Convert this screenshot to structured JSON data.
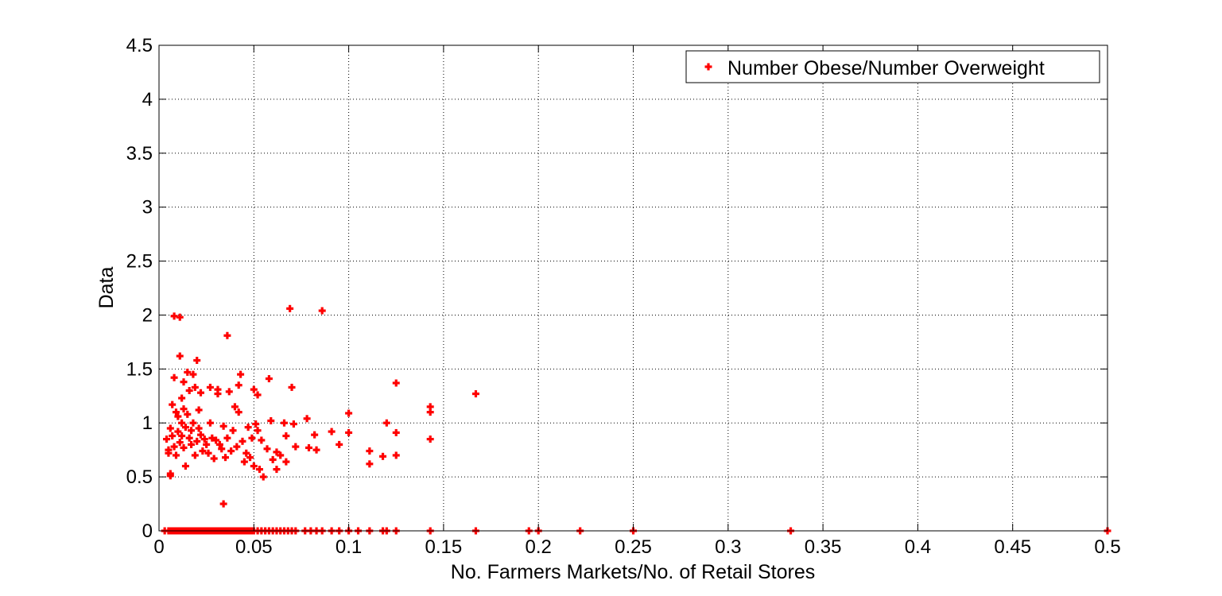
{
  "chart_data": {
    "type": "scatter",
    "xlabel": "No. Farmers Markets/No. of Retail Stores",
    "ylabel": "Data",
    "xlim": [
      0,
      0.5
    ],
    "ylim": [
      0,
      4.5
    ],
    "x_ticks": [
      0,
      0.05,
      0.1,
      0.15,
      0.2,
      0.25,
      0.3,
      0.35,
      0.4,
      0.45,
      0.5
    ],
    "x_tick_labels": [
      "0",
      "0.05",
      "0.1",
      "0.15",
      "0.2",
      "0.25",
      "0.3",
      "0.35",
      "0.4",
      "0.45",
      "0.5"
    ],
    "y_ticks": [
      0,
      0.5,
      1,
      1.5,
      2,
      2.5,
      3,
      3.5,
      4,
      4.5
    ],
    "y_tick_labels": [
      "0",
      "0.5",
      "1",
      "1.5",
      "2",
      "2.5",
      "3",
      "3.5",
      "4",
      "4.5"
    ],
    "grid": true,
    "legend_position": "top-right",
    "colors": {
      "series": "#ff0000",
      "axes": "#000000",
      "background": "#ffffff"
    },
    "series": [
      {
        "name": "Number Obese/Number Overweight",
        "marker": "plus",
        "points": [
          [
            0.003,
            0
          ],
          [
            0.005,
            0
          ],
          [
            0.006,
            0
          ],
          [
            0.007,
            0
          ],
          [
            0.008,
            0
          ],
          [
            0.009,
            0
          ],
          [
            0.01,
            0
          ],
          [
            0.011,
            0
          ],
          [
            0.012,
            0
          ],
          [
            0.013,
            0
          ],
          [
            0.014,
            0
          ],
          [
            0.015,
            0
          ],
          [
            0.016,
            0
          ],
          [
            0.017,
            0
          ],
          [
            0.018,
            0
          ],
          [
            0.019,
            0
          ],
          [
            0.02,
            0
          ],
          [
            0.021,
            0
          ],
          [
            0.022,
            0
          ],
          [
            0.023,
            0
          ],
          [
            0.024,
            0
          ],
          [
            0.025,
            0
          ],
          [
            0.026,
            0
          ],
          [
            0.027,
            0
          ],
          [
            0.028,
            0
          ],
          [
            0.029,
            0
          ],
          [
            0.03,
            0
          ],
          [
            0.031,
            0
          ],
          [
            0.032,
            0
          ],
          [
            0.033,
            0
          ],
          [
            0.034,
            0
          ],
          [
            0.035,
            0
          ],
          [
            0.036,
            0
          ],
          [
            0.037,
            0
          ],
          [
            0.038,
            0
          ],
          [
            0.039,
            0
          ],
          [
            0.04,
            0
          ],
          [
            0.041,
            0
          ],
          [
            0.042,
            0
          ],
          [
            0.043,
            0
          ],
          [
            0.044,
            0
          ],
          [
            0.045,
            0
          ],
          [
            0.046,
            0
          ],
          [
            0.047,
            0
          ],
          [
            0.048,
            0
          ],
          [
            0.049,
            0
          ],
          [
            0.05,
            0
          ],
          [
            0.052,
            0
          ],
          [
            0.054,
            0
          ],
          [
            0.056,
            0
          ],
          [
            0.058,
            0
          ],
          [
            0.06,
            0
          ],
          [
            0.062,
            0
          ],
          [
            0.064,
            0
          ],
          [
            0.066,
            0
          ],
          [
            0.068,
            0
          ],
          [
            0.07,
            0
          ],
          [
            0.072,
            0
          ],
          [
            0.077,
            0
          ],
          [
            0.08,
            0
          ],
          [
            0.083,
            0
          ],
          [
            0.086,
            0
          ],
          [
            0.091,
            0
          ],
          [
            0.095,
            0
          ],
          [
            0.1,
            0
          ],
          [
            0.105,
            0
          ],
          [
            0.111,
            0
          ],
          [
            0.118,
            0
          ],
          [
            0.12,
            0
          ],
          [
            0.125,
            0
          ],
          [
            0.143,
            0
          ],
          [
            0.167,
            0
          ],
          [
            0.195,
            0
          ],
          [
            0.2,
            0
          ],
          [
            0.222,
            0
          ],
          [
            0.25,
            0
          ],
          [
            0.333,
            0
          ],
          [
            0.5,
            0
          ],
          [
            0.004,
            0.85
          ],
          [
            0.005,
            0.75
          ],
          [
            0.005,
            0.72
          ],
          [
            0.006,
            0.53
          ],
          [
            0.006,
            0.51
          ],
          [
            0.006,
            0.95
          ],
          [
            0.007,
            0.88
          ],
          [
            0.007,
            1.17
          ],
          [
            0.008,
            1.42
          ],
          [
            0.008,
            1.99
          ],
          [
            0.008,
            0.78
          ],
          [
            0.009,
            1.1
          ],
          [
            0.009,
            0.7
          ],
          [
            0.01,
            1.06
          ],
          [
            0.01,
            0.92
          ],
          [
            0.011,
            1.98
          ],
          [
            0.011,
            0.82
          ],
          [
            0.011,
            1.62
          ],
          [
            0.012,
            1.23
          ],
          [
            0.012,
            1.0
          ],
          [
            0.012,
            0.88
          ],
          [
            0.013,
            1.38
          ],
          [
            0.013,
            1.13
          ],
          [
            0.013,
            0.77
          ],
          [
            0.014,
            0.6
          ],
          [
            0.014,
            0.96
          ],
          [
            0.015,
            1.47
          ],
          [
            0.015,
            1.08
          ],
          [
            0.016,
            0.86
          ],
          [
            0.016,
            1.3
          ],
          [
            0.017,
            0.93
          ],
          [
            0.017,
            0.8
          ],
          [
            0.018,
            1.45
          ],
          [
            0.018,
            1.0
          ],
          [
            0.019,
            0.7
          ],
          [
            0.019,
            1.33
          ],
          [
            0.02,
            1.58
          ],
          [
            0.02,
            0.83
          ],
          [
            0.021,
            1.12
          ],
          [
            0.021,
            0.95
          ],
          [
            0.022,
            0.89
          ],
          [
            0.022,
            1.28
          ],
          [
            0.023,
            0.74
          ],
          [
            0.024,
            0.85
          ],
          [
            0.025,
            0.8
          ],
          [
            0.026,
            0.72
          ],
          [
            0.027,
            1.33
          ],
          [
            0.027,
            1.0
          ],
          [
            0.028,
            0.86
          ],
          [
            0.029,
            0.67
          ],
          [
            0.03,
            0.84
          ],
          [
            0.031,
            1.31
          ],
          [
            0.031,
            1.27
          ],
          [
            0.032,
            0.8
          ],
          [
            0.033,
            0.76
          ],
          [
            0.034,
            0.25
          ],
          [
            0.034,
            0.97
          ],
          [
            0.035,
            0.68
          ],
          [
            0.036,
            1.81
          ],
          [
            0.036,
            0.86
          ],
          [
            0.037,
            1.29
          ],
          [
            0.038,
            0.74
          ],
          [
            0.039,
            0.93
          ],
          [
            0.04,
            1.15
          ],
          [
            0.041,
            0.78
          ],
          [
            0.042,
            1.35
          ],
          [
            0.042,
            1.1
          ],
          [
            0.043,
            1.45
          ],
          [
            0.044,
            0.83
          ],
          [
            0.045,
            0.64
          ],
          [
            0.046,
            0.72
          ],
          [
            0.047,
            0.96
          ],
          [
            0.048,
            0.68
          ],
          [
            0.049,
            0.86
          ],
          [
            0.05,
            1.31
          ],
          [
            0.05,
            0.6
          ],
          [
            0.051,
            0.99
          ],
          [
            0.052,
            1.26
          ],
          [
            0.052,
            0.93
          ],
          [
            0.053,
            0.57
          ],
          [
            0.054,
            0.84
          ],
          [
            0.055,
            0.5
          ],
          [
            0.057,
            0.76
          ],
          [
            0.058,
            1.41
          ],
          [
            0.059,
            1.02
          ],
          [
            0.06,
            0.66
          ],
          [
            0.062,
            0.73
          ],
          [
            0.062,
            0.57
          ],
          [
            0.064,
            0.7
          ],
          [
            0.066,
            1.0
          ],
          [
            0.067,
            0.88
          ],
          [
            0.067,
            0.64
          ],
          [
            0.069,
            2.06
          ],
          [
            0.07,
            1.33
          ],
          [
            0.071,
            0.99
          ],
          [
            0.072,
            0.78
          ],
          [
            0.078,
            1.04
          ],
          [
            0.079,
            0.77
          ],
          [
            0.082,
            0.89
          ],
          [
            0.083,
            0.75
          ],
          [
            0.086,
            2.04
          ],
          [
            0.091,
            0.92
          ],
          [
            0.095,
            0.8
          ],
          [
            0.1,
            1.09
          ],
          [
            0.1,
            0.91
          ],
          [
            0.111,
            0.74
          ],
          [
            0.111,
            0.62
          ],
          [
            0.118,
            0.69
          ],
          [
            0.12,
            1.0
          ],
          [
            0.125,
            1.37
          ],
          [
            0.125,
            0.91
          ],
          [
            0.125,
            0.7
          ],
          [
            0.143,
            1.15
          ],
          [
            0.143,
            1.1
          ],
          [
            0.143,
            0.85
          ],
          [
            0.167,
            1.27
          ]
        ]
      }
    ]
  }
}
